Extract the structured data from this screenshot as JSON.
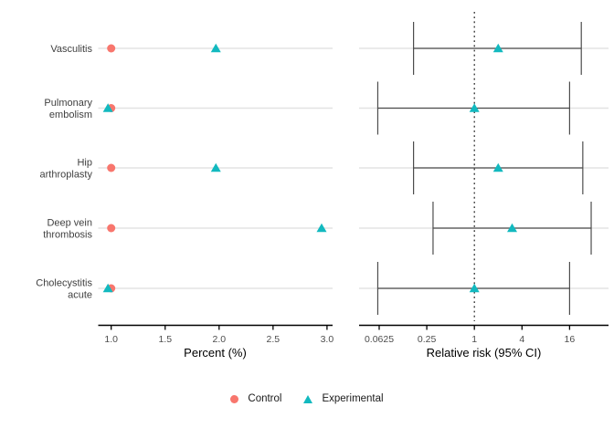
{
  "colors": {
    "control": "#F8766D",
    "experimental": "#12B9BF",
    "grid": "#E3E3E3",
    "errorbar": "#4D4D4D",
    "axis": "#000000",
    "tick_label": "#4D4D4D",
    "row_label": "#404040",
    "ref_line": "#1A1A1A"
  },
  "legend": {
    "items": [
      {
        "label": "Control",
        "marker": "circle",
        "color": "#F8766D"
      },
      {
        "label": "Experimental",
        "marker": "triangle",
        "color": "#12B9BF"
      }
    ]
  },
  "chart_data": [
    {
      "type": "scatter",
      "panel": "percent",
      "title": "",
      "categories": [
        "Vasculitis",
        "Pulmonary embolism",
        "Hip arthroplasty",
        "Deep vein thrombosis",
        "Cholecystitis acute"
      ],
      "category_lines": [
        [
          "Vasculitis"
        ],
        [
          "Pulmonary",
          "embolism"
        ],
        [
          "Hip",
          "arthroplasty"
        ],
        [
          "Deep vein",
          "thrombosis"
        ],
        [
          "Cholecystitis",
          "acute"
        ]
      ],
      "series": [
        {
          "name": "Control",
          "marker": "circle",
          "color": "#F8766D",
          "values": [
            1.0,
            1.0,
            1.0,
            1.0,
            1.0
          ]
        },
        {
          "name": "Experimental",
          "marker": "triangle",
          "color": "#12B9BF",
          "values": [
            1.97,
            0.97,
            1.97,
            2.95,
            0.97
          ]
        }
      ],
      "xlabel": "Percent (%)",
      "xticks": [
        1.0,
        1.5,
        2.0,
        2.5,
        3.0
      ],
      "xtick_labels": [
        "1.0",
        "1.5",
        "2.0",
        "2.5",
        "3.0"
      ],
      "xlim": [
        0.88,
        3.05
      ],
      "scale": "linear",
      "grid": "horizontal-row-lines"
    },
    {
      "type": "forest",
      "panel": "relative-risk",
      "title": "",
      "categories": [
        "Vasculitis",
        "Pulmonary embolism",
        "Hip arthroplasty",
        "Deep vein thrombosis",
        "Cholecystitis acute"
      ],
      "series": [
        {
          "name": "Experimental",
          "marker": "triangle",
          "color": "#12B9BF",
          "values": [
            2.0,
            1.0,
            2.0,
            3.0,
            1.0
          ],
          "ci_low": [
            0.17,
            0.06,
            0.17,
            0.3,
            0.06
          ],
          "ci_high": [
            22.5,
            16,
            23.5,
            30,
            16
          ]
        }
      ],
      "xlabel": "Relative risk (95% CI)",
      "xticks": [
        0.0625,
        0.25,
        1,
        4,
        16
      ],
      "xtick_labels": [
        "0.0625",
        "0.25",
        "1",
        "4",
        "16"
      ],
      "scale": "log4",
      "refline": 1,
      "grid": "horizontal-row-lines"
    }
  ]
}
